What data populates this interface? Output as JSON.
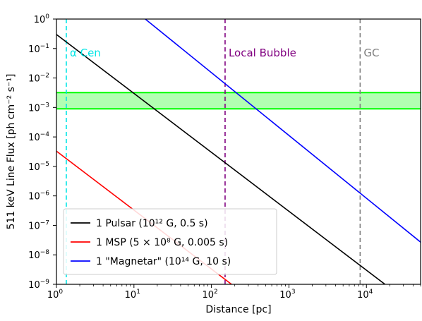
{
  "chart_data": {
    "type": "line",
    "xlabel": "Distance [pc]",
    "ylabel": "511 keV Line Flux [ph cm⁻² s⁻¹]",
    "xscale": "log",
    "yscale": "log",
    "xlim": [
      1,
      50000
    ],
    "ylim": [
      1e-09,
      1
    ],
    "x_ticks": [
      {
        "value": 1,
        "mant": "10",
        "exp": "0"
      },
      {
        "value": 10,
        "mant": "10",
        "exp": "1"
      },
      {
        "value": 100,
        "mant": "10",
        "exp": "2"
      },
      {
        "value": 1000,
        "mant": "10",
        "exp": "3"
      },
      {
        "value": 10000,
        "mant": "10",
        "exp": "4"
      }
    ],
    "y_ticks": [
      {
        "value": 1,
        "mant": "10",
        "exp": "0"
      },
      {
        "value": 0.1,
        "mant": "10",
        "exp": "−1"
      },
      {
        "value": 0.01,
        "mant": "10",
        "exp": "−2"
      },
      {
        "value": 0.001,
        "mant": "10",
        "exp": "−3"
      },
      {
        "value": 0.0001,
        "mant": "10",
        "exp": "−4"
      },
      {
        "value": 1e-05,
        "mant": "10",
        "exp": "−5"
      },
      {
        "value": 1e-06,
        "mant": "10",
        "exp": "−6"
      },
      {
        "value": 1e-07,
        "mant": "10",
        "exp": "−7"
      },
      {
        "value": 1e-08,
        "mant": "10",
        "exp": "−8"
      },
      {
        "value": 1e-09,
        "mant": "10",
        "exp": "−9"
      }
    ],
    "series": [
      {
        "name": "1 Pulsar (10¹² G, 0.5 s)",
        "color": "#000000",
        "x": [
          1,
          18000
        ],
        "y": [
          0.3,
          9.3e-10
        ]
      },
      {
        "name": "1 MSP (5 × 10⁸ G, 0.005 s)",
        "color": "#ff0000",
        "x": [
          1,
          300
        ],
        "y": [
          3.3e-05,
          3.67e-10
        ]
      },
      {
        "name": "1 \"Magnetar\" (10¹⁴ G, 10 s)",
        "color": "#0000ff",
        "x": [
          14,
          50000
        ],
        "y": [
          1,
          2.7e-08
        ]
      }
    ],
    "band": {
      "y_low": 0.0009,
      "y_high": 0.0032,
      "color": "#00ff00"
    },
    "vlines": [
      {
        "x": 1.34,
        "label": "α Cen",
        "color": "#00e5e5"
      },
      {
        "x": 150,
        "label": "Local Bubble",
        "color": "#800080"
      },
      {
        "x": 8300,
        "label": "GC",
        "color": "#808080"
      }
    ],
    "legend_position": "lower-left",
    "grid": false
  }
}
